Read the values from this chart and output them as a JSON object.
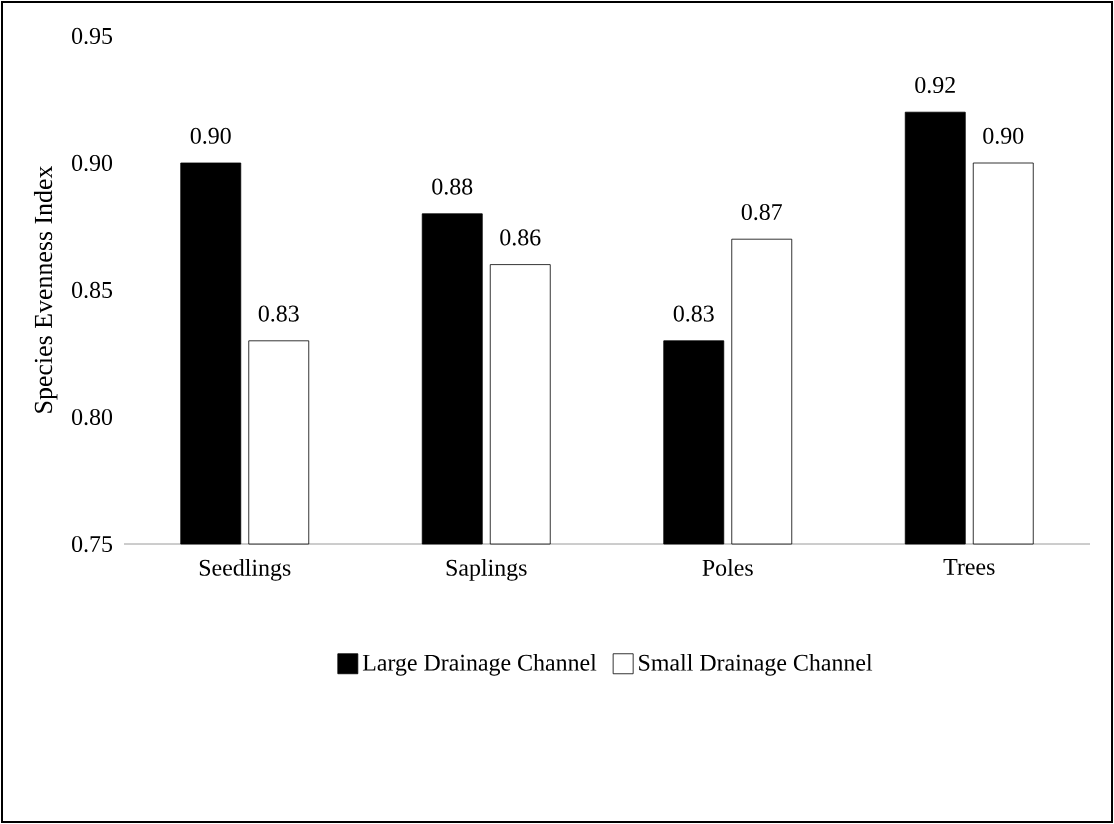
{
  "chart_data": {
    "type": "bar",
    "ylabel": "Species Evenness Index",
    "categories": [
      "Seedlings",
      "Saplings",
      "Poles",
      "Trees"
    ],
    "series": [
      {
        "name": "Large Drainage Channel",
        "color": "#000000",
        "values": [
          0.9,
          0.88,
          0.83,
          0.92
        ],
        "value_labels": [
          "0.90",
          "0.88",
          "0.83",
          "0.92"
        ]
      },
      {
        "name": "Small Drainage Channel",
        "color": "#ffffff",
        "values": [
          0.83,
          0.86,
          0.87,
          0.9
        ],
        "value_labels": [
          "0.83",
          "0.86",
          "0.87",
          "0.90"
        ]
      }
    ],
    "ylim": [
      0.75,
      0.95
    ],
    "yticks": [
      0.75,
      {
        "value": 0.8,
        "label": "0.80"
      },
      0.85,
      {
        "value": 0.9,
        "label": "0.90"
      },
      0.95
    ],
    "grid": false,
    "legend": "bottom"
  }
}
